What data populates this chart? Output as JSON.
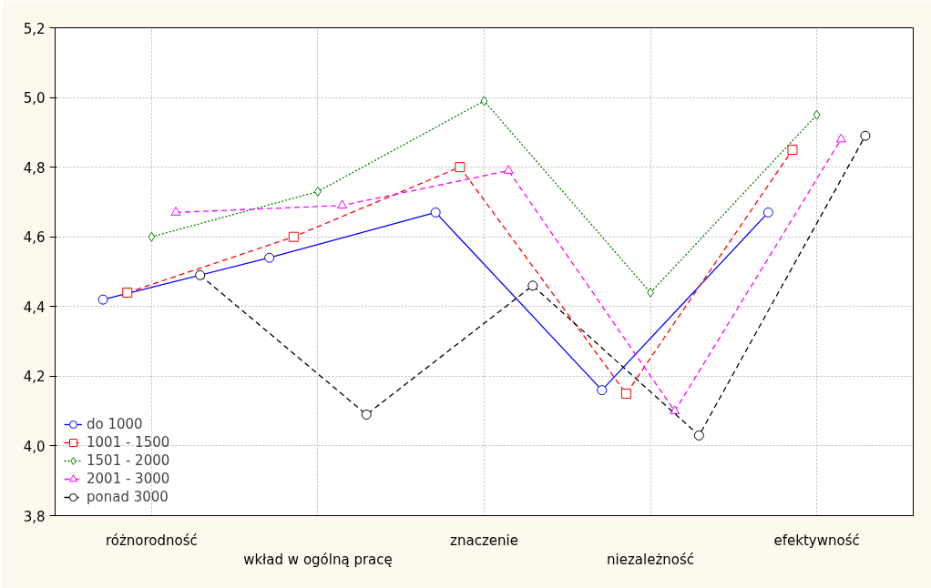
{
  "chart_data": {
    "type": "line",
    "categories": [
      "różnorodność",
      "wkład w ogólną pracę",
      "znaczenie",
      "niezależność",
      "efektywność"
    ],
    "ylim": [
      3.8,
      5.2
    ],
    "yticks": [
      {
        "value": 3.8,
        "label": "3,8"
      },
      {
        "value": 4.0,
        "label": "4,0"
      },
      {
        "value": 4.2,
        "label": "4,2"
      },
      {
        "value": 4.4,
        "label": "4,4"
      },
      {
        "value": 4.6,
        "label": "4,6"
      },
      {
        "value": 4.8,
        "label": "4,8"
      },
      {
        "value": 5.0,
        "label": "5,0"
      },
      {
        "value": 5.2,
        "label": "5,2"
      }
    ],
    "grid": true,
    "legend": "bottom left",
    "series": [
      {
        "name": "do 1000",
        "color": "#0000ff",
        "marker": "circle",
        "line_style": "solid",
        "values": [
          4.42,
          4.54,
          4.67,
          4.16,
          4.67
        ]
      },
      {
        "name": "1001 - 1500",
        "color": "#ff0000",
        "marker": "square",
        "line_style": "dashed",
        "values": [
          4.44,
          4.6,
          4.8,
          4.15,
          4.85
        ]
      },
      {
        "name": "1501 - 2000",
        "color": "#008000",
        "marker": "diamond",
        "line_style": "dotted",
        "values": [
          4.6,
          4.73,
          4.99,
          4.44,
          4.95
        ]
      },
      {
        "name": "2001 - 3000",
        "color": "#ff00ff",
        "marker": "triangle",
        "line_style": "dashed",
        "values": [
          4.67,
          4.69,
          4.79,
          4.1,
          4.88
        ]
      },
      {
        "name": "ponad 3000",
        "color": "#000000",
        "marker": "circle",
        "line_style": "dashed",
        "values": [
          4.49,
          4.09,
          4.46,
          4.03,
          4.89
        ]
      }
    ]
  }
}
